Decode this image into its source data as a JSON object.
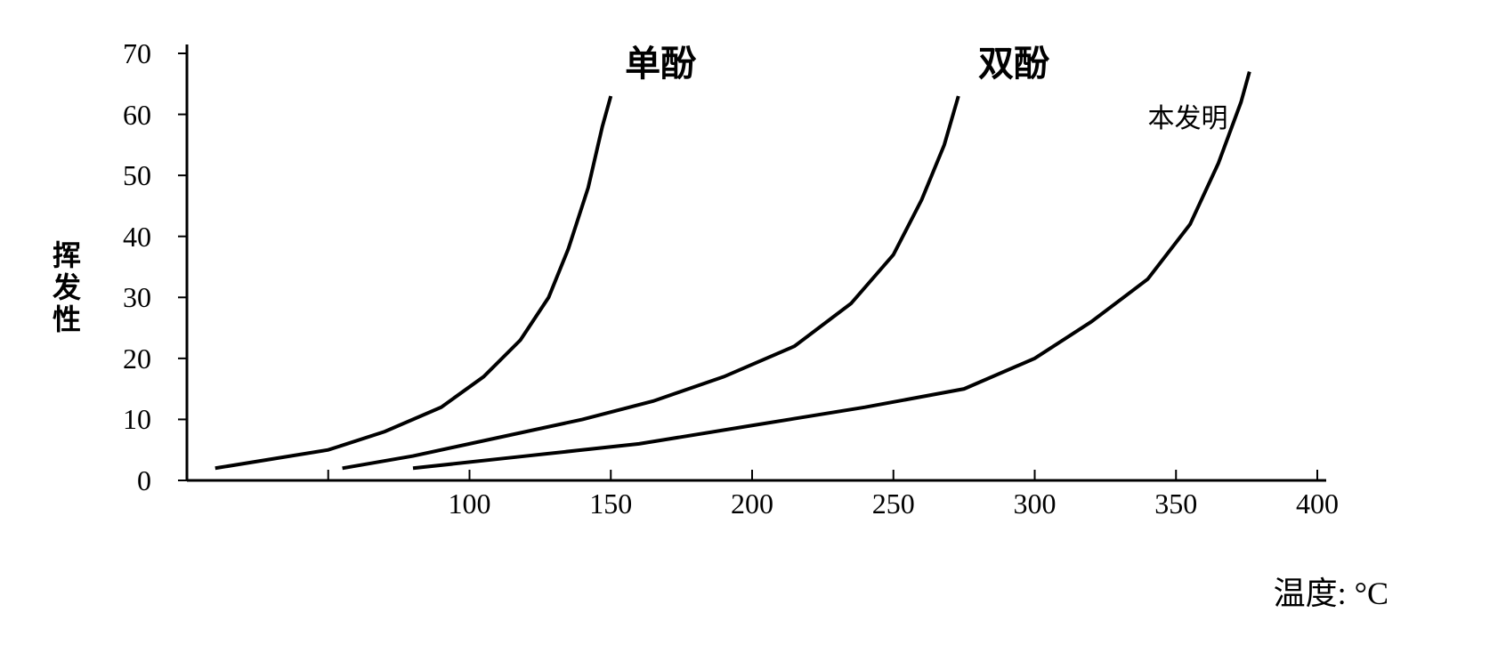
{
  "chart": {
    "type": "line",
    "ylabel": "挥发性",
    "xlabel": "温度: °C",
    "ylim": [
      0,
      70
    ],
    "xlim": [
      0,
      400
    ],
    "ytick_step": 10,
    "xtick_step": 50,
    "yticks": [
      0,
      10,
      20,
      30,
      40,
      50,
      60,
      70
    ],
    "xticks": [
      100,
      150,
      200,
      250,
      300,
      350,
      400
    ],
    "background_color": "#ffffff",
    "line_color": "#000000",
    "line_width": 4,
    "label_fontsize": 36,
    "tick_fontsize": 32,
    "series_label_fontsize": 40,
    "series": [
      {
        "name": "单酚",
        "label": "单酚",
        "label_pos": {
          "x": 155,
          "y": 73
        },
        "data": [
          {
            "x": 10,
            "y": 2
          },
          {
            "x": 30,
            "y": 3.5
          },
          {
            "x": 50,
            "y": 5
          },
          {
            "x": 70,
            "y": 8
          },
          {
            "x": 90,
            "y": 12
          },
          {
            "x": 105,
            "y": 17
          },
          {
            "x": 118,
            "y": 23
          },
          {
            "x": 128,
            "y": 30
          },
          {
            "x": 135,
            "y": 38
          },
          {
            "x": 142,
            "y": 48
          },
          {
            "x": 147,
            "y": 58
          },
          {
            "x": 150,
            "y": 63
          }
        ]
      },
      {
        "name": "双酚",
        "label": "双酚",
        "label_pos": {
          "x": 280,
          "y": 73
        },
        "data": [
          {
            "x": 55,
            "y": 2
          },
          {
            "x": 80,
            "y": 4
          },
          {
            "x": 110,
            "y": 7
          },
          {
            "x": 140,
            "y": 10
          },
          {
            "x": 165,
            "y": 13
          },
          {
            "x": 190,
            "y": 17
          },
          {
            "x": 215,
            "y": 22
          },
          {
            "x": 235,
            "y": 29
          },
          {
            "x": 250,
            "y": 37
          },
          {
            "x": 260,
            "y": 46
          },
          {
            "x": 268,
            "y": 55
          },
          {
            "x": 273,
            "y": 63
          }
        ]
      },
      {
        "name": "本发明",
        "label": "本发明",
        "label_pos": {
          "x": 340,
          "y": 63
        },
        "data": [
          {
            "x": 80,
            "y": 2
          },
          {
            "x": 120,
            "y": 4
          },
          {
            "x": 160,
            "y": 6
          },
          {
            "x": 200,
            "y": 9
          },
          {
            "x": 240,
            "y": 12
          },
          {
            "x": 275,
            "y": 15
          },
          {
            "x": 300,
            "y": 20
          },
          {
            "x": 320,
            "y": 26
          },
          {
            "x": 340,
            "y": 33
          },
          {
            "x": 355,
            "y": 42
          },
          {
            "x": 365,
            "y": 52
          },
          {
            "x": 373,
            "y": 62
          },
          {
            "x": 376,
            "y": 67
          }
        ]
      }
    ]
  }
}
